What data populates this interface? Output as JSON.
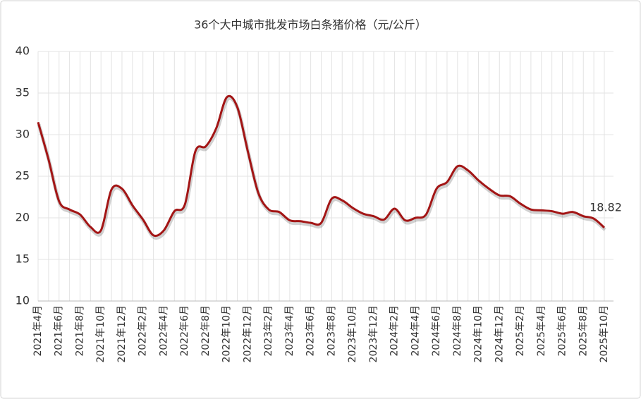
{
  "chart_data": {
    "type": "line",
    "title": "36个大中城市批发市场白条猪价格（元/公斤）",
    "categories": [
      "2021年4月",
      null,
      "2021年6月",
      null,
      "2021年8月",
      null,
      "2021年10月",
      null,
      "2021年12月",
      null,
      "2022年2月",
      null,
      "2022年4月",
      null,
      "2022年6月",
      null,
      "2022年8月",
      null,
      "2022年10月",
      null,
      "2022年12月",
      null,
      "2023年2月",
      null,
      "2023年4月",
      null,
      "2023年6月",
      null,
      "2023年8月",
      null,
      "2023年10月",
      null,
      "2023年12月",
      null,
      "2024年2月",
      null,
      "2024年4月",
      null,
      "2024年6月",
      null,
      "2024年8月",
      null,
      "2024年10月",
      null,
      "2024年12月",
      null,
      "2025年2月",
      null,
      "2025年4月",
      null,
      "2025年6月",
      null,
      "2025年8月",
      null,
      "2025年10月"
    ],
    "series": [
      {
        "name": "白条猪价格",
        "color": "#a31515",
        "values": [
          31.5,
          27,
          22,
          21,
          20.4,
          18.9,
          18.5,
          23.4,
          23.5,
          21.5,
          19.8,
          17.9,
          18.5,
          20.8,
          21.6,
          28.0,
          28.6,
          30.8,
          34.5,
          33.3,
          28,
          23,
          21,
          20.7,
          19.7,
          19.6,
          19.4,
          19.4,
          22.3,
          22.1,
          21.2,
          20.5,
          20.2,
          19.8,
          21.1,
          19.7,
          20.0,
          20.4,
          23.5,
          24.3,
          26.2,
          25.7,
          24.5,
          23.5,
          22.7,
          22.6,
          21.7,
          21.0,
          20.9,
          20.8,
          20.5,
          20.7,
          20.2,
          19.9,
          18.82
        ]
      }
    ],
    "ylim": [
      10,
      40
    ],
    "yticks": [
      10,
      15,
      20,
      25,
      30,
      35,
      40
    ],
    "grid": true
  }
}
